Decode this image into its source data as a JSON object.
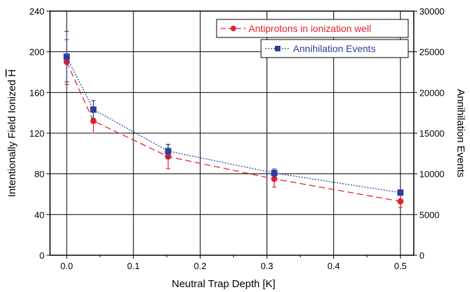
{
  "chart_data": {
    "type": "line",
    "xlabel": "Neutral Trap Depth [K]",
    "ylabel": "Intentionally Field Ionized H",
    "ylabel_overline_char": "H",
    "y2label": "Annihilation Events",
    "xlim": [
      -0.025,
      0.52
    ],
    "ylim": [
      0,
      240
    ],
    "y2lim": [
      0,
      30000
    ],
    "xticks": [
      "0.0",
      "0.1",
      "0.2",
      "0.3",
      "0.4",
      "0.5"
    ],
    "xtick_values": [
      0.0,
      0.1,
      0.2,
      0.3,
      0.4,
      0.5
    ],
    "yticks": [
      "0",
      "40",
      "80",
      "120",
      "160",
      "200",
      "240"
    ],
    "ytick_values": [
      0,
      40,
      80,
      120,
      160,
      200,
      240
    ],
    "y2ticks": [
      "0",
      "5000",
      "10000",
      "15000",
      "20000",
      "25000",
      "30000"
    ],
    "y2tick_values": [
      0,
      5000,
      10000,
      15000,
      20000,
      25000,
      30000
    ],
    "grid": true,
    "legend_position": "top-right",
    "series": [
      {
        "name": "Antiprotons in ionization well",
        "axis": "left",
        "color": "#e8202a",
        "marker": "circle",
        "line_style": "dashed",
        "x": [
          0.0,
          0.04,
          0.152,
          0.311,
          0.5
        ],
        "y": [
          190,
          132,
          97,
          75,
          53
        ],
        "err": [
          22,
          12,
          12,
          8,
          6
        ]
      },
      {
        "name": "Annihilation Events",
        "axis": "right",
        "color": "#2a3fa0",
        "marker": "square",
        "line_style": "dotted",
        "x": [
          0.0,
          0.04,
          0.152,
          0.311,
          0.5
        ],
        "y": [
          24400,
          17900,
          12800,
          10100,
          7700
        ],
        "err": [
          3100,
          1100,
          800,
          500,
          300
        ]
      }
    ]
  }
}
